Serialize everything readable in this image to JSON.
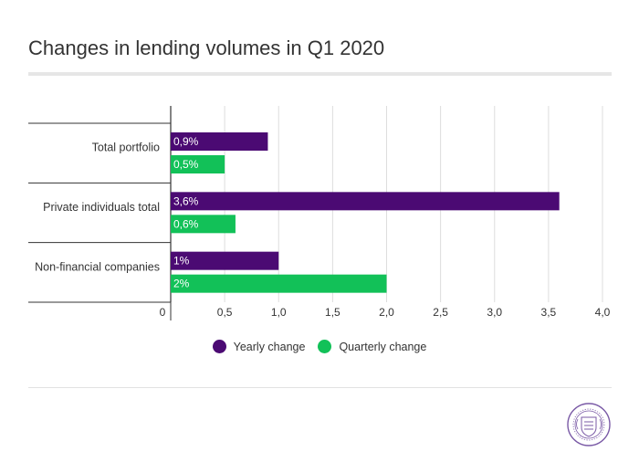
{
  "title": "Changes in lending volumes in Q1 2020",
  "colors": {
    "yearly": "#4b0a73",
    "quarterly": "#12c158",
    "grid": "#dddddd",
    "axis": "#333333"
  },
  "chart_data": {
    "type": "bar",
    "orientation": "horizontal",
    "categories": [
      "Total portfolio",
      "Private individuals total",
      "Non-financial companies"
    ],
    "series": [
      {
        "name": "Yearly change",
        "values": [
          0.9,
          3.6,
          1
        ],
        "labels": [
          "0,9%",
          "3,6%",
          "1%"
        ]
      },
      {
        "name": "Quarterly change",
        "values": [
          0.5,
          0.6,
          2
        ],
        "labels": [
          "0,5%",
          "0,6%",
          "2%"
        ]
      }
    ],
    "xlim": [
      0,
      4
    ],
    "xticks": [
      {
        "value": 0,
        "label": "0"
      },
      {
        "value": 0.5,
        "label": "0,5"
      },
      {
        "value": 1,
        "label": "1,0"
      },
      {
        "value": 1.5,
        "label": "1,5"
      },
      {
        "value": 2,
        "label": "2,0"
      },
      {
        "value": 2.5,
        "label": "2,5"
      },
      {
        "value": 3,
        "label": "3,0"
      },
      {
        "value": 3.5,
        "label": "3,5"
      },
      {
        "value": 4,
        "label": "4,0"
      }
    ],
    "grid": true,
    "legend_position": "bottom"
  },
  "legend": [
    {
      "label": "Yearly change",
      "color": "#4b0a73"
    },
    {
      "label": "Quarterly change",
      "color": "#12c158"
    }
  ],
  "logo": {
    "name": "seal-icon"
  }
}
